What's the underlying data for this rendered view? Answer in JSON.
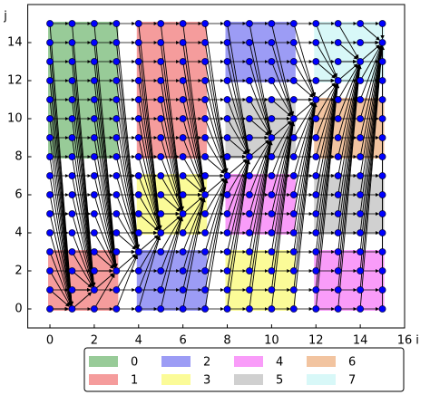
{
  "chart_data": {
    "type": "grid-flow",
    "xlabel": "i",
    "ylabel": "j",
    "xlim": [
      -1,
      16
    ],
    "ylim": [
      -1,
      16
    ],
    "xticks": [
      0,
      2,
      4,
      6,
      8,
      10,
      12,
      14,
      16
    ],
    "yticks": [
      0,
      2,
      4,
      6,
      8,
      10,
      12,
      14
    ],
    "x": [
      0,
      1,
      2,
      3,
      4,
      5,
      6,
      7,
      8,
      9,
      10,
      11,
      12,
      13,
      14,
      15
    ],
    "y": [
      0,
      1,
      2,
      3,
      4,
      5,
      6,
      7,
      8,
      9,
      10,
      11,
      12,
      13,
      14,
      15
    ],
    "point_color": "#0000ff",
    "arrow_color": "#000000",
    "arrow_targets": {
      "x": [
        1,
        2,
        3,
        4,
        5,
        6,
        7,
        8,
        9,
        10,
        11,
        12,
        13,
        14,
        15,
        15
      ],
      "y": [
        0,
        1,
        2,
        3,
        4,
        5,
        6,
        7,
        8,
        9,
        10,
        11,
        12,
        13,
        14,
        14
      ]
    },
    "series": [
      {
        "name": "0",
        "color": "#98cb98",
        "regions": [
          [
            0,
            3,
            8,
            15
          ]
        ]
      },
      {
        "name": "1",
        "color": "#f59c9c",
        "regions": [
          [
            4,
            7,
            8,
            15
          ],
          [
            0,
            3,
            0,
            3
          ]
        ]
      },
      {
        "name": "2",
        "color": "#9c9cf5",
        "regions": [
          [
            8,
            11,
            12,
            15
          ],
          [
            4,
            7,
            0,
            3
          ]
        ]
      },
      {
        "name": "3",
        "color": "#fbfb98",
        "regions": [
          [
            4,
            7,
            4,
            7
          ],
          [
            8,
            11,
            0,
            3
          ]
        ]
      },
      {
        "name": "4",
        "color": "#f99cf9",
        "regions": [
          [
            8,
            11,
            4,
            7
          ],
          [
            12,
            15,
            0,
            3
          ]
        ]
      },
      {
        "name": "5",
        "color": "#d0d0d0",
        "regions": [
          [
            8,
            11,
            8,
            11
          ],
          [
            12,
            15,
            4,
            7
          ]
        ]
      },
      {
        "name": "6",
        "color": "#f2c4a0",
        "regions": [
          [
            12,
            15,
            8,
            11
          ]
        ]
      },
      {
        "name": "7",
        "color": "#d8f8f8",
        "regions": [
          [
            12,
            15,
            12,
            15
          ]
        ]
      }
    ]
  }
}
